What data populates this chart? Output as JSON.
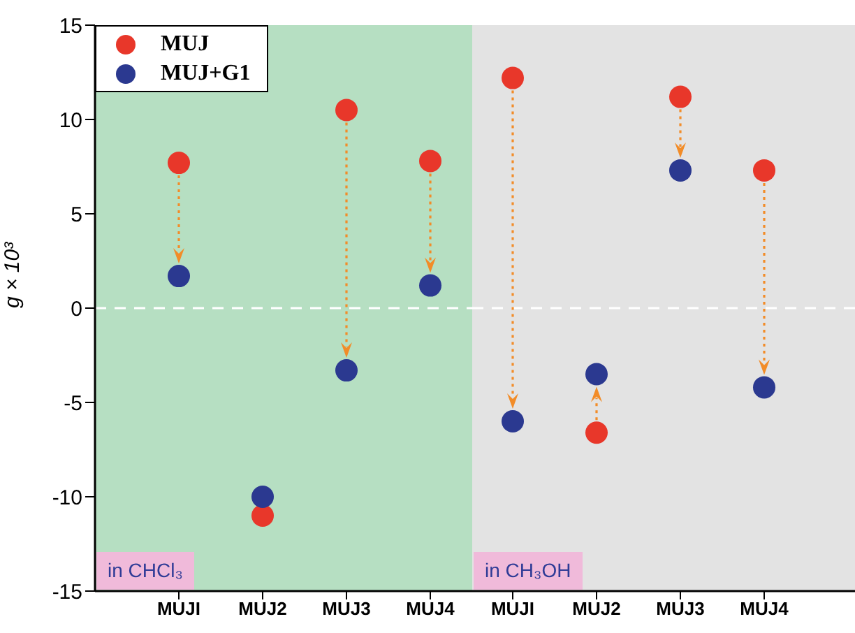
{
  "chart_data": [
    {
      "type": "scatter",
      "ylabel": "g × 10³",
      "categories": [
        "MUJI",
        "MUJ2",
        "MUJ3",
        "MUJ4"
      ],
      "series": [
        {
          "name": "MUJ",
          "color": "#e8372a",
          "values": [
            7.7,
            -11,
            10.5,
            7.8
          ]
        },
        {
          "name": "MUJ+G1",
          "color": "#2b3990",
          "values": [
            1.7,
            -10,
            -3.3,
            1.2
          ]
        }
      ],
      "ylim": [
        -15,
        15
      ],
      "yticks": [
        -15,
        -10,
        -5,
        0,
        5,
        10,
        15
      ],
      "marker": "circle",
      "legend": "top left",
      "grid": false,
      "ref_lines": [
        {
          "axis": "y",
          "value": 0,
          "color": "#ffffff",
          "line_style": "dashed"
        }
      ],
      "bands": [
        {
          "axis": "y",
          "from": -15,
          "to": 15,
          "label": "in CHCl₃",
          "color": "#b6dfc2"
        }
      ]
    },
    {
      "type": "scatter",
      "categories": [
        "MUJI",
        "MUJ2",
        "MUJ3",
        "MUJ4"
      ],
      "series": [
        {
          "color": "#e8372a",
          "values": [
            12.2,
            -6.6,
            11.2,
            7.3
          ]
        },
        {
          "color": "#2b3990",
          "values": [
            -6.0,
            -3.5,
            7.3,
            -4.2
          ]
        }
      ],
      "ylim": [
        -15,
        15
      ],
      "yticks": [
        -15,
        -10,
        -5,
        0,
        5,
        10,
        15
      ],
      "marker": "circle",
      "tick_labels": "x",
      "grid": false,
      "ref_lines": [
        {
          "axis": "y",
          "value": 0,
          "color": "#ffffff",
          "line_style": "dashed"
        }
      ],
      "bands": [
        {
          "axis": "y",
          "from": -15,
          "to": 15,
          "label": "in CH₃OH",
          "color": "#e3e3e3"
        }
      ]
    }
  ]
}
